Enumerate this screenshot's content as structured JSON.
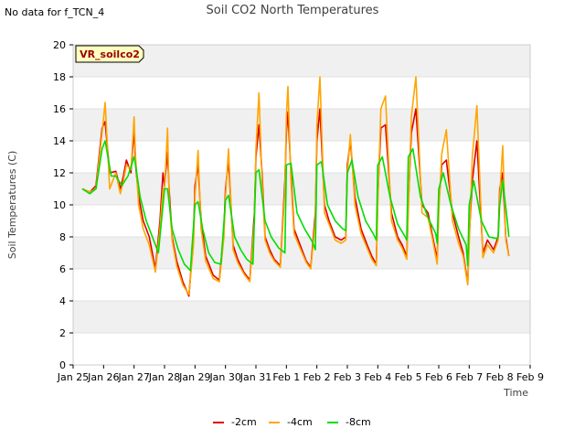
{
  "note": "No data for f_TCN_4",
  "chart_data": {
    "type": "line",
    "title": "Soil CO2 North Temperatures",
    "xlabel": "Time",
    "ylabel": "Soil Temperatures (C)",
    "ylim": [
      0,
      20
    ],
    "yticks": [
      0,
      2,
      4,
      6,
      8,
      10,
      12,
      14,
      16,
      18,
      20
    ],
    "xlim": [
      0,
      15
    ],
    "xticks": [
      {
        "x": 0,
        "label": "Jan 25"
      },
      {
        "x": 1,
        "label": "Jan 26"
      },
      {
        "x": 2,
        "label": "Jan 27"
      },
      {
        "x": 3,
        "label": "Jan 28"
      },
      {
        "x": 4,
        "label": "Jan 29"
      },
      {
        "x": 5,
        "label": "Jan 30"
      },
      {
        "x": 6,
        "label": "Jan 31"
      },
      {
        "x": 7,
        "label": "Feb 1"
      },
      {
        "x": 8,
        "label": "Feb 2"
      },
      {
        "x": 9,
        "label": "Feb 3"
      },
      {
        "x": 10,
        "label": "Feb 4"
      },
      {
        "x": 11,
        "label": "Feb 5"
      },
      {
        "x": 12,
        "label": "Feb 6"
      },
      {
        "x": 13,
        "label": "Feb 7"
      },
      {
        "x": 14,
        "label": "Feb 8"
      },
      {
        "x": 15,
        "label": "Feb 9"
      }
    ],
    "x_unit": "days since Jan 25",
    "grid": "horizontal bands",
    "legend_position": "bottom",
    "site_label": "VR_soilco2",
    "series": [
      {
        "name": "-2cm",
        "color": "#dd0000",
        "x": [
          0.3,
          0.55,
          0.75,
          0.95,
          1.05,
          1.2,
          1.4,
          1.55,
          1.65,
          1.75,
          1.9,
          2.0,
          2.05,
          2.15,
          2.3,
          2.5,
          2.7,
          2.85,
          2.95,
          3.0,
          3.1,
          3.15,
          3.25,
          3.4,
          3.6,
          3.8,
          3.95,
          4.0,
          4.1,
          4.2,
          4.35,
          4.6,
          4.8,
          4.95,
          5.0,
          5.1,
          5.25,
          5.4,
          5.6,
          5.8,
          5.95,
          6.0,
          6.1,
          6.2,
          6.3,
          6.45,
          6.6,
          6.8,
          6.95,
          7.0,
          7.05,
          7.15,
          7.25,
          7.45,
          7.65,
          7.8,
          7.95,
          8.0,
          8.1,
          8.25,
          8.4,
          8.6,
          8.8,
          8.95,
          9.0,
          9.1,
          9.25,
          9.45,
          9.65,
          9.8,
          9.95,
          10.0,
          10.1,
          10.25,
          10.45,
          10.65,
          10.8,
          10.95,
          11.0,
          11.1,
          11.25,
          11.45,
          11.65,
          11.8,
          11.95,
          12.0,
          12.1,
          12.25,
          12.45,
          12.65,
          12.8,
          12.95,
          13.0,
          13.1,
          13.25,
          13.45,
          13.6,
          13.8,
          13.95,
          14.0,
          14.1,
          14.2,
          14.3
        ],
        "y": [
          11.0,
          10.8,
          11.2,
          14.8,
          15.2,
          12.0,
          12.1,
          11.0,
          11.8,
          12.8,
          12.0,
          14.8,
          12.5,
          10.5,
          9.0,
          8.0,
          6.0,
          9.0,
          12.0,
          11.2,
          13.3,
          11.0,
          8.0,
          6.5,
          5.2,
          4.3,
          8.0,
          11.2,
          12.5,
          9.0,
          6.8,
          5.6,
          5.3,
          8.5,
          11.0,
          12.8,
          7.5,
          6.6,
          5.8,
          5.3,
          9.5,
          13.0,
          15.0,
          12.0,
          8.0,
          7.2,
          6.6,
          6.2,
          11.5,
          14.5,
          15.8,
          12.0,
          8.5,
          7.5,
          6.5,
          6.1,
          9.5,
          14.0,
          16.0,
          10.0,
          9.0,
          8.0,
          7.8,
          8.0,
          12.5,
          14.0,
          10.5,
          8.5,
          7.5,
          6.8,
          6.3,
          10.5,
          14.8,
          15.0,
          9.5,
          8.0,
          7.5,
          6.8,
          10.0,
          14.5,
          16.0,
          10.0,
          9.5,
          8.0,
          6.6,
          10.0,
          12.5,
          12.8,
          9.5,
          8.0,
          7.0,
          5.1,
          8.0,
          11.5,
          14.0,
          7.0,
          7.8,
          7.2,
          8.0,
          11.0,
          12.0,
          8.0,
          6.8
        ]
      },
      {
        "name": "-4cm",
        "color": "#ffa500",
        "x": [
          0.3,
          0.55,
          0.75,
          0.95,
          1.05,
          1.2,
          1.4,
          1.55,
          1.65,
          1.75,
          1.9,
          2.0,
          2.05,
          2.15,
          2.3,
          2.5,
          2.7,
          2.85,
          2.95,
          3.0,
          3.1,
          3.15,
          3.25,
          3.4,
          3.6,
          3.8,
          3.95,
          4.0,
          4.1,
          4.2,
          4.35,
          4.6,
          4.8,
          4.95,
          5.0,
          5.1,
          5.25,
          5.4,
          5.6,
          5.8,
          5.95,
          6.0,
          6.1,
          6.2,
          6.3,
          6.45,
          6.6,
          6.8,
          6.95,
          7.0,
          7.05,
          7.15,
          7.25,
          7.45,
          7.65,
          7.8,
          7.95,
          8.0,
          8.1,
          8.25,
          8.4,
          8.6,
          8.8,
          8.95,
          9.0,
          9.1,
          9.25,
          9.45,
          9.65,
          9.8,
          9.95,
          10.0,
          10.1,
          10.25,
          10.45,
          10.65,
          10.8,
          10.95,
          11.0,
          11.1,
          11.25,
          11.45,
          11.65,
          11.8,
          11.95,
          12.0,
          12.1,
          12.25,
          12.45,
          12.65,
          12.8,
          12.95,
          13.0,
          13.1,
          13.25,
          13.45,
          13.6,
          13.8,
          13.95,
          14.0,
          14.1,
          14.2,
          14.3
        ],
        "y": [
          11.0,
          10.8,
          11.0,
          14.5,
          16.4,
          11.0,
          12.0,
          10.7,
          11.5,
          12.5,
          12.2,
          15.5,
          13.0,
          10.0,
          8.5,
          7.5,
          5.8,
          8.5,
          11.0,
          11.0,
          14.8,
          10.5,
          7.8,
          6.2,
          5.0,
          4.4,
          7.5,
          10.5,
          13.4,
          8.5,
          6.5,
          5.4,
          5.2,
          8.0,
          10.5,
          13.5,
          7.2,
          6.4,
          5.7,
          5.2,
          9.0,
          13.5,
          17.0,
          11.5,
          7.8,
          7.0,
          6.5,
          6.1,
          11.0,
          15.5,
          17.4,
          11.5,
          8.2,
          7.3,
          6.4,
          6.0,
          9.0,
          15.0,
          18.0,
          9.5,
          8.8,
          7.8,
          7.6,
          7.8,
          12.0,
          14.4,
          10.0,
          8.2,
          7.3,
          6.6,
          6.2,
          10.0,
          16.0,
          16.8,
          9.0,
          7.8,
          7.3,
          6.6,
          9.5,
          15.5,
          18.0,
          9.5,
          9.2,
          7.8,
          6.3,
          9.5,
          13.2,
          14.7,
          9.0,
          7.6,
          6.8,
          5.0,
          7.5,
          13.0,
          16.2,
          6.7,
          7.5,
          7.0,
          7.8,
          10.5,
          13.7,
          7.8,
          6.8
        ]
      },
      {
        "name": "-8cm",
        "color": "#00dd00",
        "x": [
          0.3,
          0.55,
          0.75,
          0.95,
          1.05,
          1.25,
          1.4,
          1.6,
          1.8,
          2.0,
          2.05,
          2.2,
          2.4,
          2.6,
          2.8,
          3.0,
          3.1,
          3.25,
          3.45,
          3.65,
          3.85,
          4.0,
          4.1,
          4.25,
          4.45,
          4.65,
          4.85,
          5.0,
          5.1,
          5.3,
          5.5,
          5.7,
          5.9,
          6.0,
          6.1,
          6.3,
          6.5,
          6.75,
          6.95,
          7.0,
          7.15,
          7.35,
          7.6,
          7.85,
          7.95,
          8.0,
          8.15,
          8.35,
          8.6,
          8.85,
          8.95,
          9.0,
          9.15,
          9.35,
          9.6,
          9.85,
          9.95,
          10.0,
          10.15,
          10.4,
          10.65,
          10.9,
          10.95,
          11.0,
          11.15,
          11.4,
          11.65,
          11.9,
          11.95,
          12.0,
          12.15,
          12.4,
          12.65,
          12.9,
          12.95,
          13.0,
          13.15,
          13.4,
          13.65,
          13.9,
          13.95,
          14.0,
          14.1,
          14.25,
          14.3
        ],
        "y": [
          11.0,
          10.7,
          11.0,
          13.5,
          14.0,
          11.8,
          11.8,
          11.2,
          11.8,
          13.0,
          12.5,
          10.5,
          9.0,
          8.0,
          7.0,
          11.0,
          11.0,
          8.5,
          7.2,
          6.3,
          5.9,
          10.0,
          10.2,
          8.5,
          7.0,
          6.4,
          6.3,
          10.3,
          10.6,
          8.0,
          7.2,
          6.6,
          6.3,
          12.0,
          12.2,
          9.0,
          8.0,
          7.3,
          7.0,
          12.5,
          12.6,
          9.5,
          8.5,
          7.7,
          7.2,
          12.5,
          12.7,
          10.0,
          9.0,
          8.5,
          8.4,
          12.0,
          12.8,
          10.5,
          9.0,
          8.2,
          7.8,
          12.5,
          13.0,
          10.5,
          8.8,
          8.0,
          7.8,
          13.0,
          13.5,
          10.5,
          9.2,
          8.2,
          7.6,
          11.0,
          12.0,
          10.0,
          8.5,
          7.5,
          6.2,
          10.0,
          11.5,
          9.0,
          8.0,
          7.9,
          8.0,
          10.0,
          11.5,
          9.0,
          8.0
        ]
      }
    ]
  }
}
